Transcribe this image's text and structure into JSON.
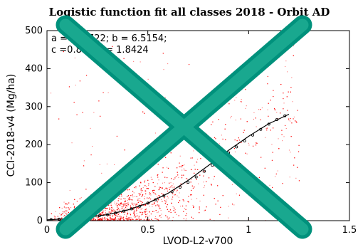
{
  "chart_data": {
    "type": "scatter",
    "title": "Logistic function fit all classes 2018 - Orbit AD",
    "xlabel": "LVOD-L2-v700",
    "ylabel": "CCI-2018-v4 (Mg/ha)",
    "xlim": [
      0,
      1.5
    ],
    "ylim": [
      0,
      500
    ],
    "x_ticks": [
      "0",
      "0.5",
      "1",
      "1.5"
    ],
    "y_ticks": [
      "0",
      "100",
      "200",
      "300",
      "400",
      "500"
    ],
    "annotation_line1": "a = 2..2722; b = 6.5154;",
    "annotation_line2": "c =0.8...; d = 1.8424",
    "scatter_color": "#ff0000",
    "fit_color": "#000000",
    "overlay_color": "#00917c",
    "overlay_symbol": "large-x-cross",
    "binned_means": {
      "x": [
        0.02,
        0.06,
        0.1,
        0.14,
        0.18,
        0.22,
        0.26,
        0.3,
        0.34,
        0.38,
        0.42,
        0.46,
        0.5,
        0.54,
        0.58,
        0.62,
        0.66,
        0.7,
        0.74,
        0.78,
        0.82,
        0.86,
        0.9,
        0.94,
        0.98,
        1.02,
        1.06,
        1.1,
        1.14,
        1.18
      ],
      "y": [
        3,
        4,
        5,
        6,
        8,
        10,
        13,
        16,
        20,
        25,
        31,
        38,
        46,
        55,
        65,
        76,
        88,
        101,
        115,
        130,
        146,
        162,
        178,
        194,
        210,
        225,
        240,
        254,
        266,
        276
      ]
    },
    "fit_curve": {
      "x": [
        0.0,
        0.1,
        0.2,
        0.3,
        0.4,
        0.5,
        0.6,
        0.7,
        0.8,
        0.9,
        1.0,
        1.1,
        1.2
      ],
      "y": [
        2,
        5,
        9,
        16,
        28,
        46,
        72,
        106,
        145,
        185,
        222,
        255,
        280
      ]
    }
  }
}
